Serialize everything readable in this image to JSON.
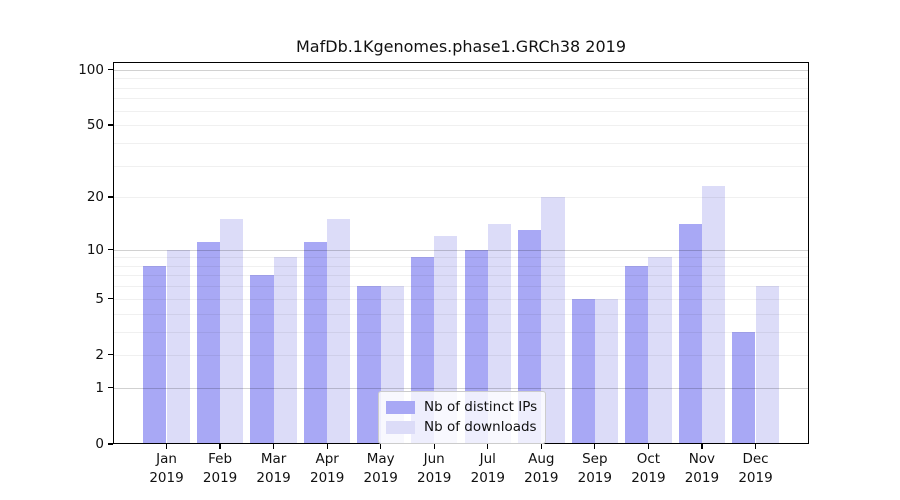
{
  "title": "MafDb.1Kgenomes.phase1.GRCh38 2019",
  "colors": {
    "ips": "#a8a8f5",
    "downloads": "#dcdcf8",
    "axis": "#000000",
    "grid_major": "rgba(0,0,0,0.18)",
    "grid_minor": "rgba(0,0,0,0.06)",
    "legend_border": "#cccccc",
    "text": "#111111"
  },
  "legend": {
    "items": [
      {
        "label": "Nb of distinct IPs",
        "series": "ips"
      },
      {
        "label": "Nb of downloads",
        "series": "downloads"
      }
    ]
  },
  "chart_data": {
    "type": "bar",
    "title": "MafDb.1Kgenomes.phase1.GRCh38 2019",
    "categories": [
      "Jan",
      "Feb",
      "Mar",
      "Apr",
      "May",
      "Jun",
      "Jul",
      "Aug",
      "Sep",
      "Oct",
      "Nov",
      "Dec"
    ],
    "year_label": "2019",
    "series": [
      {
        "name": "Nb of distinct IPs",
        "key": "ips",
        "values": [
          8,
          11,
          7,
          11,
          6,
          9,
          10,
          13,
          5,
          8,
          14,
          3
        ]
      },
      {
        "name": "Nb of downloads",
        "key": "downloads",
        "values": [
          10,
          15,
          9,
          15,
          6,
          12,
          14,
          20,
          5,
          9,
          23,
          6
        ]
      }
    ],
    "xlabel": "",
    "ylabel": "",
    "yscale": "log1p",
    "ylim": [
      0,
      110
    ],
    "yticks": [
      0,
      1,
      2,
      5,
      10,
      20,
      50,
      100
    ],
    "yticks_minor": [
      2,
      3,
      4,
      5,
      6,
      7,
      8,
      9,
      20,
      30,
      40,
      50,
      60,
      70,
      80,
      90
    ],
    "grid_major_at": [
      1,
      10,
      100
    ],
    "grid": true,
    "legend_position": "lower-center"
  }
}
